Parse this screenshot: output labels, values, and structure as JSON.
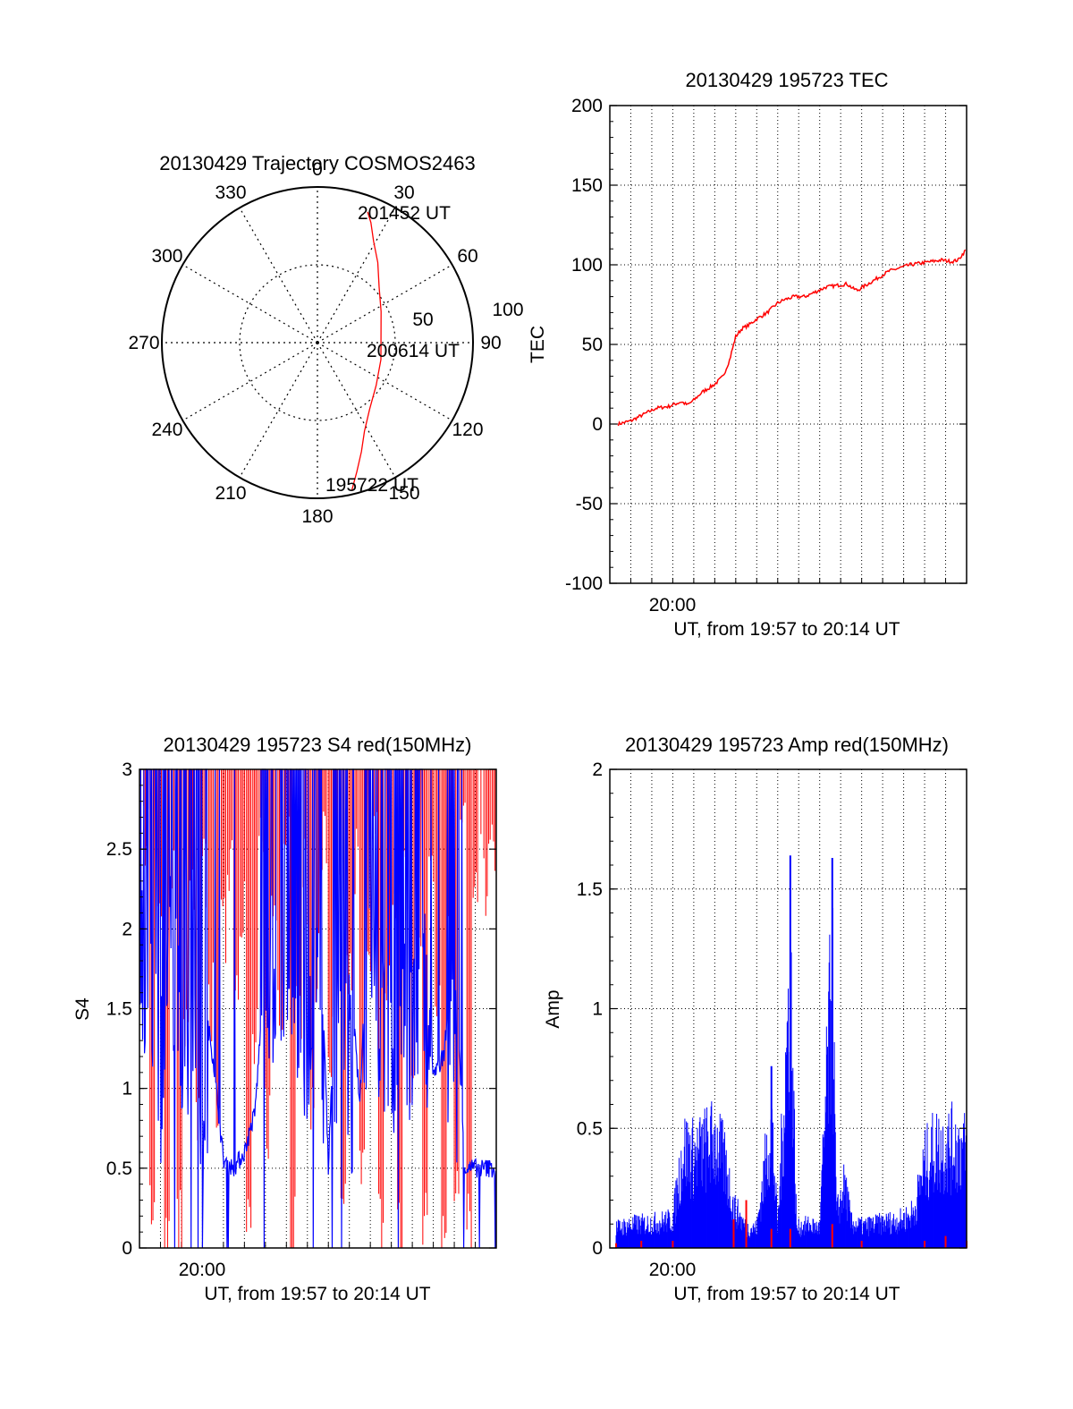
{
  "colors": {
    "red": "#ff0000",
    "blue": "#0000ff",
    "axis": "#000000",
    "grid": "#000000"
  },
  "chart_data": [
    {
      "type": "polar",
      "title": "20130429 Trajectory COSMOS2463",
      "angle_ticks": [
        "0",
        "30",
        "60",
        "90",
        "120",
        "150",
        "180",
        "210",
        "240",
        "270",
        "300",
        "330"
      ],
      "radial_tick_labels": [
        "50",
        "100"
      ],
      "annotations": [
        "201452 UT",
        "200614 UT",
        "195722 UT"
      ],
      "series": [
        {
          "color": "red",
          "points": [
            {
              "az": 167,
              "el": 2
            },
            {
              "az": 163,
              "el": 12
            },
            {
              "az": 158,
              "el": 22
            },
            {
              "az": 152,
              "el": 32
            },
            {
              "az": 142,
              "el": 41
            },
            {
              "az": 126,
              "el": 48
            },
            {
              "az": 105,
              "el": 52
            },
            {
              "az": 84,
              "el": 53
            },
            {
              "az": 64,
              "el": 49
            },
            {
              "az": 48,
              "el": 42
            },
            {
              "az": 37,
              "el": 32
            },
            {
              "az": 29,
              "el": 23
            },
            {
              "az": 24,
              "el": 14
            },
            {
              "az": 21,
              "el": 9
            }
          ]
        }
      ]
    },
    {
      "type": "line",
      "title": "20130429 195723 TEC",
      "xlabel": "UT, from 19:57 to 20:14 UT",
      "ylabel": "TEC",
      "xlim_minutes": [
        0,
        17
      ],
      "x_tick_label": "20:00",
      "ylim": [
        -100,
        200
      ],
      "yticks": [
        "200",
        "150",
        "100",
        "50",
        "0",
        "-50",
        "-100"
      ],
      "grid": true,
      "series": [
        {
          "color": "red",
          "x": [
            0.4,
            1.0,
            1.6,
            2.2,
            2.8,
            3.4,
            3.7,
            4.0,
            4.4,
            5.0,
            5.4,
            5.7,
            6.0,
            6.3,
            6.6,
            7.0,
            7.5,
            8.0,
            8.3,
            8.8,
            9.3,
            9.8,
            10.3,
            10.8,
            11.3,
            11.6,
            11.8,
            12.3,
            12.8,
            13.3,
            13.8,
            14.3,
            14.8,
            15.3,
            15.8,
            16.3,
            16.6,
            17.0
          ],
          "y": [
            0,
            2,
            6,
            10,
            11,
            14,
            12,
            15,
            20,
            25,
            30,
            40,
            55,
            60,
            62,
            66,
            70,
            76,
            78,
            80,
            80,
            83,
            86,
            87,
            88,
            85,
            84,
            88,
            92,
            96,
            98,
            100,
            101,
            102,
            103,
            102,
            103,
            110
          ]
        }
      ]
    },
    {
      "type": "line",
      "title": "20130429 195723 S4 red(150MHz)",
      "xlabel": "UT, from 19:57 to 20:14 UT",
      "ylabel": "S4",
      "xlim_minutes": [
        0,
        17
      ],
      "x_tick_label": "20:00",
      "ylim": [
        0,
        3
      ],
      "yticks": [
        "3",
        "2.5",
        "2",
        "1.5",
        "1",
        "0.5",
        "0"
      ],
      "grid": true,
      "series": [
        {
          "color": "red",
          "note_dense": true,
          "x": [
            0.2,
            0.5,
            0.9,
            1.2,
            1.5,
            1.8,
            2.1,
            2.4,
            2.7,
            3.0,
            3.3,
            3.6,
            3.9,
            4.2,
            4.5,
            4.8,
            5.1,
            5.4,
            5.7,
            6.0,
            6.3,
            6.6,
            6.9,
            7.2,
            7.5,
            7.8,
            8.1,
            8.4,
            8.7,
            9.0,
            9.3,
            9.6,
            9.9,
            10.2,
            10.5,
            10.8,
            11.1,
            11.4,
            11.7,
            12.0,
            12.3,
            12.6,
            12.9,
            13.2,
            13.5,
            13.8,
            14.1,
            14.4,
            14.7,
            15.0,
            15.3,
            15.6,
            15.9,
            16.2,
            16.5,
            16.8
          ],
          "y_top": [
            3,
            3,
            3,
            3,
            3,
            3,
            3,
            3,
            3,
            3,
            3,
            3,
            3,
            3,
            3,
            3,
            3,
            3,
            3,
            3,
            3,
            3,
            3,
            3,
            3,
            3,
            3,
            3,
            3,
            3,
            3,
            3,
            3,
            3,
            3,
            3,
            3,
            3,
            3,
            3,
            3,
            3,
            3,
            3,
            3,
            3,
            3,
            3,
            3,
            3,
            3,
            3,
            3,
            3,
            3,
            3
          ],
          "y_bottom": [
            2.5,
            0,
            1.9,
            0,
            2.3,
            0,
            1.2,
            2.0,
            0.6,
            2.2,
            1.4,
            0.9,
            1.8,
            2.4,
            1.6,
            2.1,
            0,
            1.1,
            2.3,
            0.7,
            2.0,
            1.5,
            2.5,
            0,
            1.3,
            2.2,
            0.8,
            1.7,
            2.4,
            1.1,
            2.0,
            0,
            1.6,
            2.3,
            0.3,
            1.9,
            2.4,
            0,
            1.5,
            2.1,
            0,
            2.3,
            0.9,
            2.0,
            0,
            2.4,
            1.6,
            0,
            2.2,
            0.4,
            2.5,
            0,
            2.0,
            2.6,
            2.2,
            2.4
          ]
        },
        {
          "color": "blue",
          "x": [
            0,
            0.5,
            1.0,
            1.5,
            2.0,
            2.5,
            3.0,
            3.5,
            4.0,
            4.5,
            5.0,
            5.5,
            6.0,
            6.5,
            7.0,
            7.5,
            8.0,
            8.5,
            9.0,
            9.5,
            10.0,
            10.5,
            11.0,
            11.5,
            12.0,
            12.5,
            13.0,
            13.5,
            14.0,
            14.5,
            15.0,
            15.5,
            16.0,
            16.5,
            17.0
          ],
          "y": [
            2.2,
            2.6,
            1.5,
            2.4,
            2.0,
            1.9,
            1.6,
            1.2,
            0.55,
            0.5,
            0.6,
            0.85,
            1.8,
            2.2,
            2.4,
            1.6,
            2.0,
            2.6,
            0.5,
            2.4,
            1.8,
            0.9,
            2.5,
            2.0,
            1.8,
            2.2,
            1.9,
            2.5,
            1.1,
            1.2,
            1.9,
            0.5,
            0.5,
            0.5,
            0.5
          ]
        }
      ]
    },
    {
      "type": "line",
      "title": "20130429 195723 Amp red(150MHz)",
      "xlabel": "UT, from 19:57 to 20:14 UT",
      "ylabel": "Amp",
      "xlim_minutes": [
        0,
        17
      ],
      "x_tick_label": "20:00",
      "ylim": [
        0,
        2
      ],
      "yticks": [
        "2",
        "1.5",
        "1",
        "0.5",
        "0"
      ],
      "grid": true,
      "series": [
        {
          "color": "blue",
          "x": [
            0.3,
            1.0,
            2.0,
            3.0,
            3.5,
            4.0,
            4.5,
            5.0,
            5.5,
            5.9,
            6.5,
            7.0,
            7.7,
            8.0,
            8.6,
            8.9,
            9.5,
            10.0,
            10.6,
            10.8,
            11.2,
            11.5,
            12.0,
            13.0,
            14.0,
            14.5,
            15.0,
            15.5,
            16.0,
            16.5,
            17.0
          ],
          "y": [
            0.12,
            0.14,
            0.15,
            0.17,
            0.6,
            0.55,
            0.6,
            0.65,
            0.5,
            0.25,
            0.12,
            0.12,
            0.76,
            0.12,
            1.64,
            0.12,
            0.14,
            0.12,
            1.63,
            0.2,
            0.38,
            0.15,
            0.13,
            0.15,
            0.17,
            0.22,
            0.5,
            0.6,
            0.6,
            0.62,
            0.58
          ]
        },
        {
          "color": "red",
          "x": [
            0.3,
            1.5,
            3.0,
            5.9,
            6.5,
            7.7,
            8.6,
            10.6,
            12.0,
            15.0,
            16.0,
            17.0
          ],
          "y": [
            0.02,
            0.03,
            0.03,
            0.12,
            0.2,
            0.08,
            0.08,
            0.1,
            0.03,
            0.03,
            0.05,
            0.03
          ]
        }
      ]
    }
  ]
}
